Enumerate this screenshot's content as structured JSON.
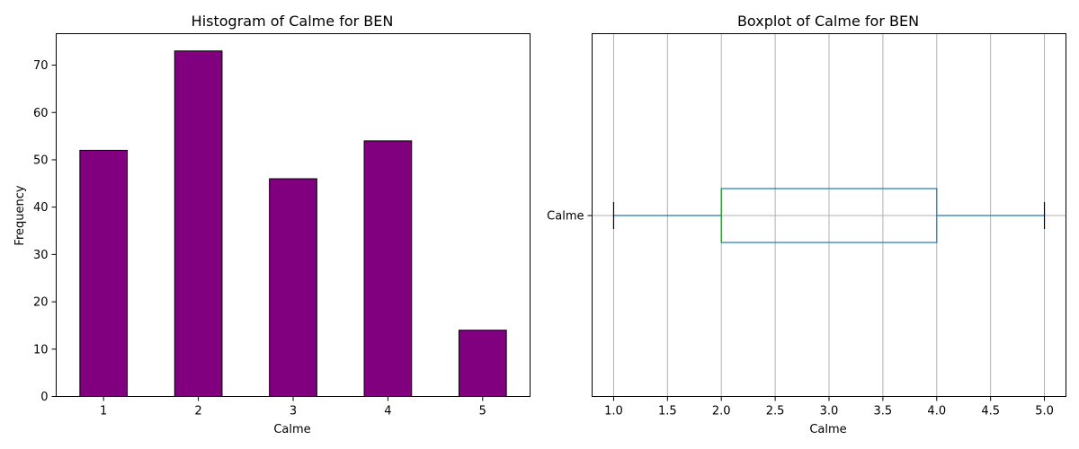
{
  "chart_data": [
    {
      "type": "bar",
      "title": "Histogram of Calme for BEN",
      "xlabel": "Calme",
      "ylabel": "Frequency",
      "categories": [
        "1",
        "2",
        "3",
        "4",
        "5"
      ],
      "values": [
        52,
        73,
        46,
        54,
        14
      ],
      "ylim": [
        0,
        76.65
      ],
      "yticks": [
        0,
        10,
        20,
        30,
        40,
        50,
        60,
        70
      ],
      "bar_color": "#800080",
      "edge_color": "#000000",
      "grid": false
    },
    {
      "type": "box",
      "title": "Boxplot of Calme for BEN",
      "xlabel": "Calme",
      "category": "Calme",
      "orientation": "horizontal",
      "stats": {
        "whisker_low": 1.0,
        "q1": 2.0,
        "median": 2.0,
        "q3": 4.0,
        "whisker_high": 5.0
      },
      "xlim": [
        0.8,
        5.2
      ],
      "xticks": [
        "1.0",
        "1.5",
        "2.0",
        "2.5",
        "3.0",
        "3.5",
        "4.0",
        "4.5",
        "5.0"
      ],
      "box_color": "#1f77b4",
      "median_color": "#2ca02c",
      "grid": true
    }
  ]
}
